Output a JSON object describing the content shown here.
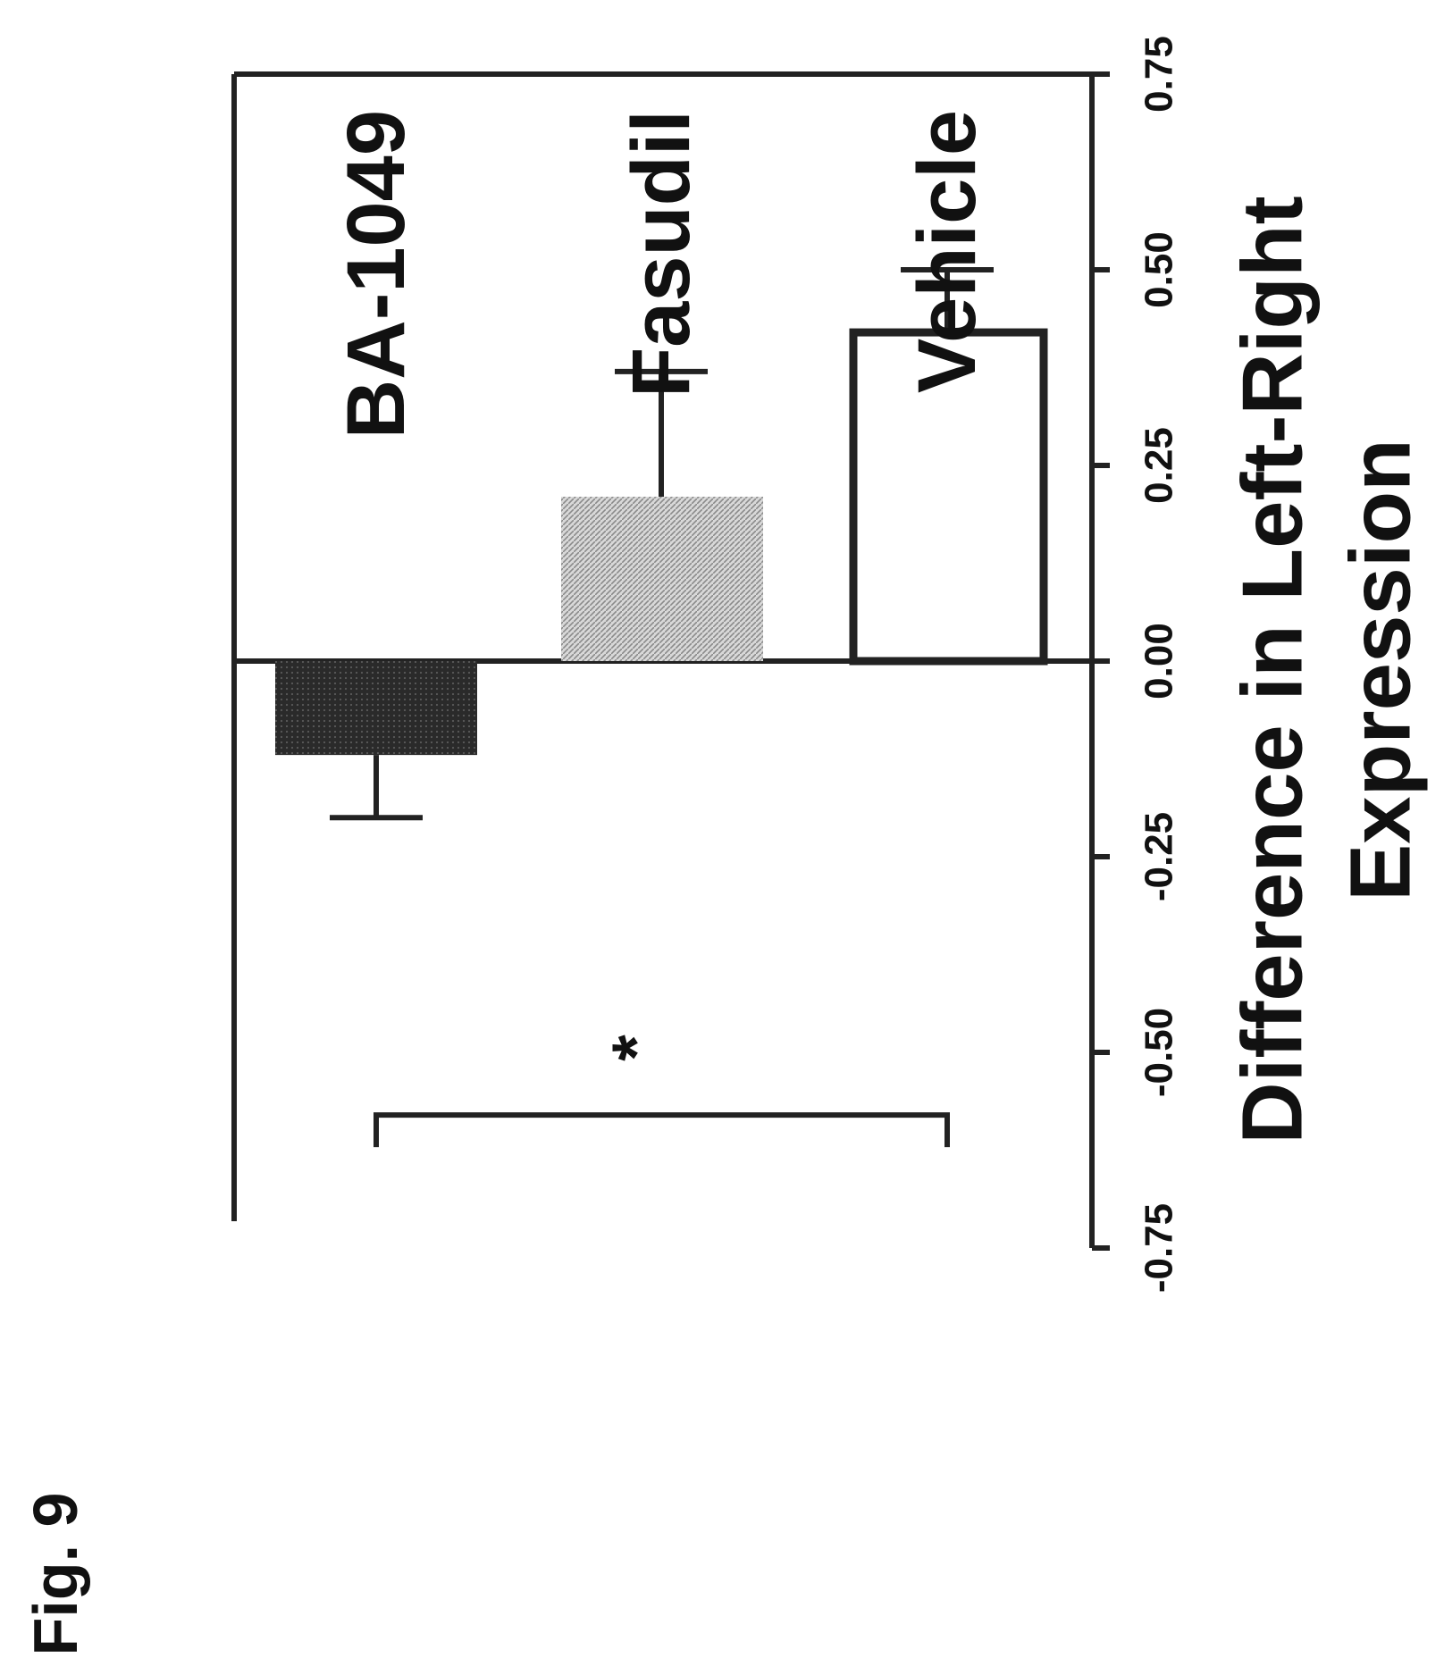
{
  "figure_label": "Fig. 9",
  "chart_data": {
    "type": "bar",
    "orientation": "horizontal",
    "rotation_deg": 90,
    "categories": [
      "BA-1049",
      "Fasudil",
      "Vehicle"
    ],
    "values": [
      -0.12,
      0.21,
      0.42
    ],
    "errors": [
      0.08,
      0.16,
      0.08
    ],
    "bar_fill": [
      "dark",
      "light-gray",
      "none"
    ],
    "xlabel_lines": [
      "Difference in Left-Right",
      "Expression"
    ],
    "ylabel": "",
    "xlim": [
      0.75,
      -0.75
    ],
    "ticks": [
      0.75,
      0.5,
      0.25,
      0.0,
      -0.25,
      -0.5,
      -0.75
    ],
    "tick_labels": [
      "0.75",
      "0.50",
      "0.25",
      "0.00",
      "-0.25",
      "-0.50",
      "-0.75"
    ],
    "significance": {
      "between": [
        "BA-1049",
        "Vehicle"
      ],
      "label": "*"
    },
    "grid": false,
    "legend": "none"
  }
}
